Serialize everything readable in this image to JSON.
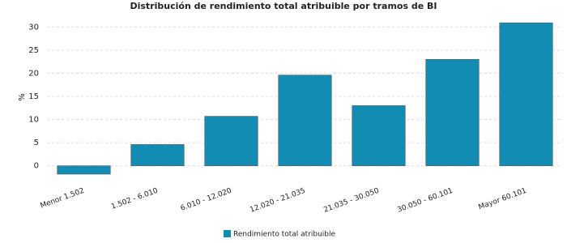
{
  "chart_data": {
    "type": "bar",
    "title": "Distribución de rendimiento total atribuible por tramos de BI",
    "y_label": "%",
    "categories": [
      "Menor 1.502",
      "1.502 - 6.010",
      "6.010 - 12.020",
      "12.020 - 21.035",
      "21.035 - 30.050",
      "30.050 - 60.101",
      "Mayor 60.101"
    ],
    "series": [
      {
        "name": "Rendimiento total atribuible",
        "color": "#138cb4",
        "values": [
          -1.8,
          4.6,
          10.7,
          19.6,
          13.0,
          23.0,
          30.9
        ]
      }
    ],
    "ylim": [
      -2.5,
      32.5
    ],
    "yticks": [
      0,
      5,
      10,
      15,
      20,
      25,
      30
    ],
    "grid": true,
    "legend": "bottom"
  }
}
